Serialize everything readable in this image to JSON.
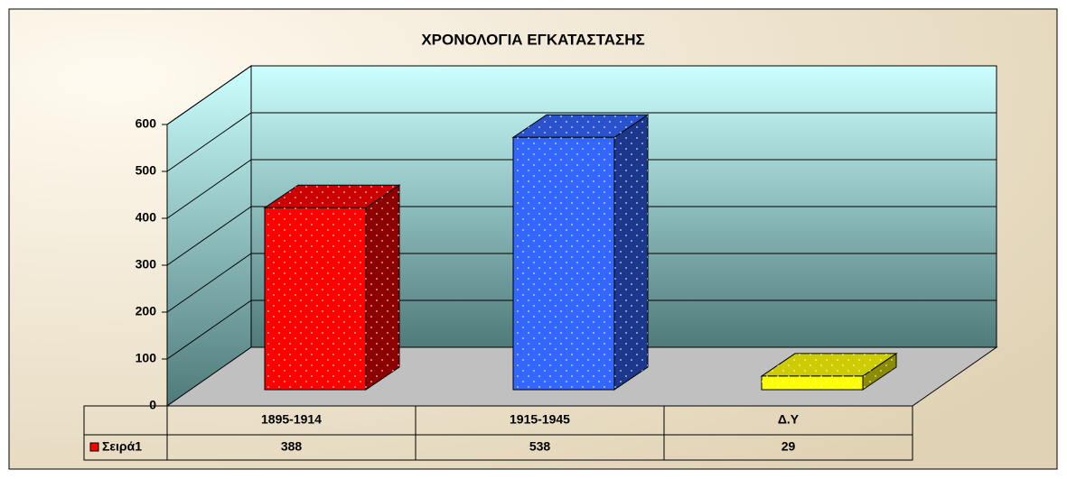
{
  "chart_data": {
    "type": "bar3d",
    "title": "ΧΡΟΝΟΛΟΓΙΑ ΕΓΚΑΤΑΣΤΑΣΗΣ",
    "categories": [
      "1895-1914",
      "1915-1945",
      "Δ.Υ"
    ],
    "series": [
      {
        "name": "Σειρά1",
        "color": "#ff0000",
        "colors": [
          "#ff0000",
          "#3366ff",
          "#ffff00"
        ],
        "values": [
          388,
          538,
          29
        ]
      }
    ],
    "ylim": [
      0,
      600
    ],
    "yticks": [
      0,
      100,
      200,
      300,
      400,
      500,
      600
    ],
    "grid": true,
    "data_table": true
  }
}
